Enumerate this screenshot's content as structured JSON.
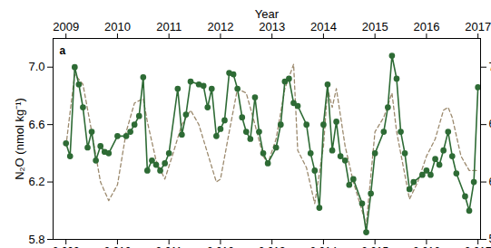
{
  "chart_data": {
    "type": "line",
    "x_label": "Year",
    "y_label": "N₂O (nmol kg⁻¹)",
    "annotation": "a",
    "xlim": [
      2008.75,
      2017.05
    ],
    "xticks": [
      2009,
      2010,
      2011,
      2012,
      2013,
      2014,
      2015,
      2016,
      2017
    ],
    "ylim": [
      5.8,
      7.2
    ],
    "yticks": [
      {
        "value": 5.8,
        "label": "5.8"
      },
      {
        "value": 6.2,
        "label": "6.2"
      },
      {
        "value": 6.6,
        "label": "6.6"
      },
      {
        "value": 7.0,
        "label": "7.0"
      }
    ],
    "grid": false,
    "series": [
      {
        "color": "#9c8a6e",
        "line_style": "dashed",
        "marker": "none",
        "x": [
          2009.0,
          2009.17,
          2009.33,
          2009.5,
          2009.67,
          2009.83,
          2010.0,
          2010.17,
          2010.33,
          2010.5,
          2010.58,
          2010.75,
          2010.92,
          2011.08,
          2011.25,
          2011.42,
          2011.58,
          2011.75,
          2011.92,
          2012.0,
          2012.17,
          2012.33,
          2012.5,
          2012.67,
          2012.83,
          2012.92,
          2013.08,
          2013.25,
          2013.42,
          2013.5,
          2013.67,
          2013.83,
          2014.0,
          2014.08,
          2014.17,
          2014.25,
          2014.42,
          2014.58,
          2014.75,
          2014.83,
          2015.0,
          2015.17,
          2015.33,
          2015.42,
          2015.58,
          2015.67,
          2015.83,
          2016.0,
          2016.17,
          2016.33,
          2016.42,
          2016.5,
          2016.67,
          2016.83,
          2017.0
        ],
        "values": [
          6.45,
          6.95,
          6.88,
          6.55,
          6.2,
          6.07,
          6.18,
          6.55,
          6.75,
          6.78,
          6.62,
          6.35,
          6.22,
          6.4,
          6.6,
          6.7,
          6.6,
          6.4,
          6.2,
          6.22,
          6.55,
          6.85,
          6.82,
          6.6,
          6.38,
          6.33,
          6.5,
          6.85,
          7.02,
          6.42,
          6.3,
          6.05,
          6.45,
          6.85,
          6.72,
          6.85,
          6.45,
          6.2,
          6.0,
          5.9,
          6.55,
          6.65,
          6.82,
          6.55,
          6.25,
          6.08,
          6.2,
          6.38,
          6.5,
          6.7,
          6.72,
          6.65,
          6.38,
          6.28,
          6.28
        ]
      },
      {
        "color": "#2e6b35",
        "line_style": "solid",
        "marker": "circle",
        "x": [
          2009.0,
          2009.08,
          2009.17,
          2009.25,
          2009.33,
          2009.42,
          2009.5,
          2009.58,
          2009.67,
          2009.75,
          2009.83,
          2010.0,
          2010.17,
          2010.25,
          2010.33,
          2010.42,
          2010.5,
          2010.58,
          2010.67,
          2010.75,
          2010.83,
          2010.92,
          2011.0,
          2011.17,
          2011.25,
          2011.33,
          2011.42,
          2011.58,
          2011.67,
          2011.75,
          2011.83,
          2011.92,
          2012.0,
          2012.08,
          2012.17,
          2012.25,
          2012.33,
          2012.42,
          2012.5,
          2012.58,
          2012.67,
          2012.75,
          2012.83,
          2012.92,
          2013.08,
          2013.17,
          2013.25,
          2013.33,
          2013.42,
          2013.5,
          2013.67,
          2013.75,
          2013.83,
          2013.92,
          2014.0,
          2014.08,
          2014.17,
          2014.25,
          2014.33,
          2014.42,
          2014.5,
          2014.58,
          2014.75,
          2014.83,
          2014.92,
          2015.0,
          2015.17,
          2015.25,
          2015.33,
          2015.42,
          2015.5,
          2015.58,
          2015.67,
          2015.75,
          2015.92,
          2016.0,
          2016.08,
          2016.17,
          2016.25,
          2016.33,
          2016.42,
          2016.5,
          2016.58,
          2016.75,
          2016.83,
          2016.92,
          2017.0
        ],
        "values": [
          6.47,
          6.38,
          7.0,
          6.88,
          6.72,
          6.44,
          6.55,
          6.35,
          6.45,
          6.41,
          6.4,
          6.52,
          6.52,
          6.55,
          6.6,
          6.66,
          6.93,
          6.28,
          6.35,
          6.32,
          6.28,
          6.33,
          6.4,
          6.85,
          6.53,
          6.67,
          6.9,
          6.88,
          6.87,
          6.72,
          6.85,
          6.52,
          6.57,
          6.63,
          6.96,
          6.95,
          6.85,
          6.65,
          6.55,
          6.5,
          6.79,
          6.55,
          6.4,
          6.33,
          6.44,
          6.6,
          6.9,
          6.92,
          6.75,
          6.73,
          6.6,
          6.4,
          6.28,
          6.02,
          6.6,
          6.88,
          6.42,
          6.62,
          6.38,
          6.35,
          6.18,
          6.22,
          6.05,
          5.85,
          6.12,
          6.4,
          6.55,
          6.72,
          7.08,
          6.92,
          6.55,
          6.4,
          6.15,
          6.2,
          6.25,
          6.28,
          6.25,
          6.36,
          6.32,
          6.42,
          6.55,
          6.38,
          6.26,
          6.1,
          6.0,
          6.2,
          6.86
        ]
      }
    ]
  }
}
